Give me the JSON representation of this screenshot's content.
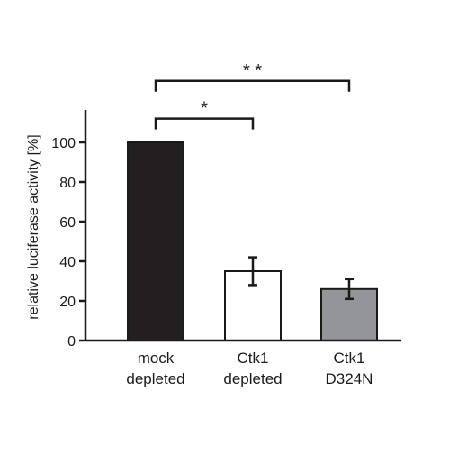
{
  "chart_data": {
    "type": "bar",
    "title": "",
    "xlabel": "",
    "ylabel": "relative luciferase activity [%]",
    "ylim": [
      0,
      120
    ],
    "yticks": [
      0,
      20,
      40,
      60,
      80,
      100
    ],
    "grid": false,
    "categories": [
      [
        "mock",
        "depleted"
      ],
      [
        "Ctk1",
        "depleted"
      ],
      [
        "Ctk1",
        "D324N"
      ]
    ],
    "values": [
      100,
      35,
      26
    ],
    "errors": [
      0,
      7,
      5
    ],
    "bar_colors": [
      "#231f20",
      "#ffffff",
      "#939598"
    ],
    "significance": [
      {
        "from": 0,
        "to": 1,
        "label": "*",
        "y": 112
      },
      {
        "from": 0,
        "to": 2,
        "label": "* *",
        "y": 131
      }
    ]
  }
}
